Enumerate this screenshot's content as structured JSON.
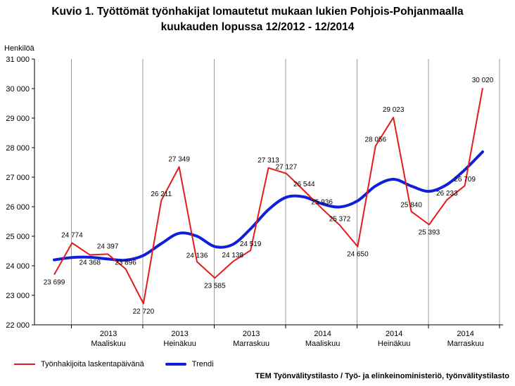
{
  "header": {
    "title_line1": "Kuvio 1. Työttömät työnhakijat lomautetut mukaan lukien Pohjois-Pohjanmaalla",
    "title_line2": "kuukauden lopussa 12/2012 - 12/2014"
  },
  "source": "TEM Työnvälitystilasto / Työ- ja elinkeinoministeriö, työnvälitystilasto",
  "chart_data": {
    "type": "line",
    "title": "Kuvio 1. Työttömät työnhakijat lomautetut mukaan lukien Pohjois-Pohjanmaalla kuukauden lopussa 12/2012 - 12/2014",
    "ylabel": "Henkilöä",
    "xlabel": "",
    "ylim": [
      22000,
      31000
    ],
    "yticks": [
      22000,
      23000,
      24000,
      25000,
      26000,
      27000,
      28000,
      29000,
      30000,
      31000
    ],
    "ytick_labels": [
      "22 000",
      "23 000",
      "24 000",
      "25 000",
      "26 000",
      "27 000",
      "28 000",
      "29 000",
      "30 000",
      "31 000"
    ],
    "x_tick_labels": [
      {
        "index": 3,
        "year": "2013",
        "month": "Maaliskuu"
      },
      {
        "index": 7,
        "year": "2013",
        "month": "Heinäkuu"
      },
      {
        "index": 11,
        "year": "2013",
        "month": "Marraskuu"
      },
      {
        "index": 15,
        "year": "2014",
        "month": "Maaliskuu"
      },
      {
        "index": 19,
        "year": "2014",
        "month": "Heinäkuu"
      },
      {
        "index": 23,
        "year": "2014",
        "month": "Marraskuu"
      }
    ],
    "grid": "vertical",
    "legend_position": "bottom-left",
    "series": [
      {
        "name": "Työnhakijoita laskentapäivänä",
        "color": "#e31b1b",
        "values": [
          23699,
          24774,
          24368,
          24397,
          23896,
          22720,
          26211,
          27349,
          24136,
          23585,
          24138,
          24519,
          27313,
          27127,
          26544,
          25936,
          25372,
          24650,
          28056,
          29023,
          25840,
          25393,
          26233,
          26709,
          30020
        ],
        "labels": [
          "23 699",
          "24 774",
          "24 368",
          "24 397",
          "23 896",
          "22 720",
          "26 211",
          "27 349",
          "24 136",
          "23 585",
          "24 138",
          "24 519",
          "27 313",
          "27 127",
          "26 544",
          "25 936",
          "25 372",
          "24 650",
          "28 056",
          "29 023",
          "25 840",
          "25 393",
          "26 233",
          "26 709",
          "30 020"
        ]
      },
      {
        "name": "Trendi",
        "color": "#0f1fdb",
        "values": [
          24200,
          24280,
          24290,
          24230,
          24190,
          24350,
          24750,
          25100,
          25000,
          24650,
          24720,
          25250,
          25900,
          26320,
          26330,
          26100,
          25990,
          26200,
          26700,
          26930,
          26700,
          26520,
          26750,
          27250,
          27860
        ]
      }
    ]
  }
}
